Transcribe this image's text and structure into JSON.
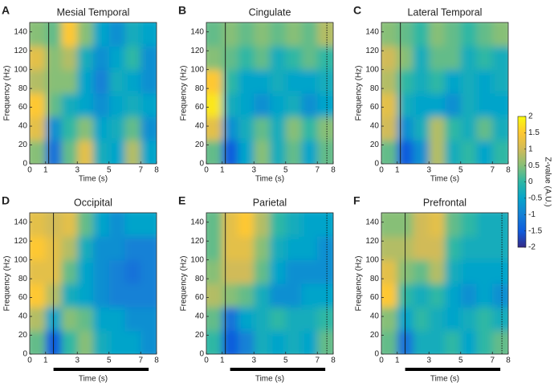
{
  "chart_data": [
    {
      "type": "heatmap",
      "label": "A",
      "title": "Mesial Temporal",
      "x_label": "Time (s)",
      "y_label": "Frequency (Hz)",
      "x_bins": [
        0,
        1,
        2,
        3,
        4,
        5,
        6,
        7,
        8
      ],
      "y_bins": [
        0,
        25,
        50,
        75,
        100,
        125,
        150
      ],
      "z": [
        [
          0.5,
          -1.2,
          0.3,
          1.2,
          -0.3,
          -0.5,
          0.8,
          -0.5
        ],
        [
          1.2,
          -0.8,
          0,
          0.5,
          -0.5,
          -0.3,
          0.3,
          -0.8
        ],
        [
          1.5,
          0.3,
          -0.3,
          -0.5,
          -0.8,
          -0.5,
          -0.3,
          -0.5
        ],
        [
          0.8,
          0.5,
          0.5,
          -0.5,
          -1,
          -0.3,
          -0.5,
          -0.8
        ],
        [
          1.2,
          0.5,
          0.8,
          -0.3,
          -0.8,
          -0.5,
          0,
          -0.8
        ],
        [
          0.5,
          0.3,
          1.5,
          0.5,
          -0.5,
          -0.8,
          -0.3,
          -0.5
        ]
      ],
      "xlim": [
        0,
        8
      ],
      "ylim": [
        0,
        150
      ],
      "xticks": [
        0,
        1,
        3,
        5,
        7,
        8
      ],
      "yticks": [
        0,
        20,
        40,
        60,
        80,
        100,
        120,
        140
      ],
      "event_lines": [
        1.2
      ]
    },
    {
      "type": "heatmap",
      "label": "B",
      "title": "Cingulate",
      "x_label": "Time (s)",
      "y_label": "Frequency (Hz)",
      "x_bins": [
        0,
        1,
        2,
        3,
        4,
        5,
        6,
        7,
        8
      ],
      "y_bins": [
        0,
        25,
        50,
        75,
        100,
        125,
        150
      ],
      "z": [
        [
          0.3,
          -1.5,
          -0.5,
          0.5,
          -0.3,
          0.3,
          -0.5,
          0.3
        ],
        [
          1.2,
          -0.8,
          -0.3,
          0.3,
          -0.3,
          0.5,
          0,
          0.5
        ],
        [
          1.8,
          -0.3,
          -0.5,
          -0.8,
          -0.5,
          -0.3,
          -0.8,
          -0.5
        ],
        [
          1.5,
          0,
          -0.5,
          -0.5,
          -0.3,
          -0.5,
          -0.5,
          -0.3
        ],
        [
          0.5,
          0.3,
          0,
          0.3,
          -0.3,
          0,
          0.3,
          0
        ],
        [
          0.3,
          0.5,
          0.3,
          0.5,
          0.3,
          0.5,
          0.3,
          0.8
        ]
      ],
      "xlim": [
        0,
        8
      ],
      "ylim": [
        0,
        150
      ],
      "xticks": [
        0,
        1,
        3,
        5,
        7,
        8
      ],
      "yticks": [
        0,
        20,
        40,
        60,
        80,
        100,
        120,
        140
      ],
      "event_lines": [
        1.2,
        7.6
      ]
    },
    {
      "type": "heatmap",
      "label": "C",
      "title": "Lateral Temporal",
      "x_label": "Time (s)",
      "y_label": "Frequency (Hz)",
      "x_bins": [
        0,
        1,
        2,
        3,
        4,
        5,
        6,
        7,
        8
      ],
      "y_bins": [
        0,
        25,
        50,
        75,
        100,
        125,
        150
      ],
      "z": [
        [
          0.3,
          -1.5,
          -0.8,
          0.8,
          -0.3,
          0,
          -0.5,
          0
        ],
        [
          1,
          -0.8,
          -0.3,
          0.8,
          0,
          -0.3,
          0.3,
          -0.3
        ],
        [
          1.2,
          -0.3,
          -0.5,
          -0.5,
          -0.8,
          -0.3,
          -0.5,
          -0.5
        ],
        [
          0.8,
          0,
          -0.3,
          0,
          -0.5,
          -0.3,
          -0.5,
          -0.3
        ],
        [
          1,
          0.5,
          -0.3,
          0.3,
          0.3,
          -0.3,
          0,
          -0.3
        ],
        [
          0.5,
          0.3,
          0,
          0.5,
          0.3,
          0,
          0.3,
          0.5
        ]
      ],
      "xlim": [
        0,
        8
      ],
      "ylim": [
        0,
        150
      ],
      "xticks": [
        0,
        1,
        3,
        5,
        7,
        8
      ],
      "yticks": [
        0,
        20,
        40,
        60,
        80,
        100,
        120,
        140
      ],
      "event_lines": [
        1.2
      ]
    },
    {
      "type": "heatmap",
      "label": "D",
      "title": "Occipital",
      "x_label": "Time (s)",
      "y_label": "Frequency (Hz)",
      "x_bins": [
        0,
        1,
        2,
        3,
        4,
        5,
        6,
        7,
        8
      ],
      "y_bins": [
        0,
        25,
        50,
        75,
        100,
        125,
        150
      ],
      "z": [
        [
          0.3,
          -1.5,
          0,
          0.5,
          -0.3,
          -0.5,
          -0.5,
          -0.8
        ],
        [
          0.8,
          -0.5,
          0.5,
          0.3,
          -0.5,
          -0.5,
          -0.8,
          -0.8
        ],
        [
          1.5,
          0.8,
          -0.3,
          -0.5,
          -0.8,
          -1,
          -1,
          -1
        ],
        [
          1.2,
          1.2,
          0.3,
          -0.5,
          -0.8,
          -1,
          -1.2,
          -1
        ],
        [
          1.5,
          1.2,
          0.8,
          -0.3,
          -0.8,
          -0.8,
          -1,
          -1
        ],
        [
          1.2,
          1,
          1.2,
          0.3,
          -0.5,
          -0.8,
          -0.5,
          -0.5
        ]
      ],
      "xlim": [
        0,
        8
      ],
      "ylim": [
        0,
        150
      ],
      "xticks": [
        0,
        1,
        3,
        5,
        7,
        8
      ],
      "yticks": [
        0,
        20,
        40,
        60,
        80,
        100,
        120,
        140
      ],
      "event_lines": [
        1.5
      ],
      "task_bar": [
        1.5,
        7.5
      ]
    },
    {
      "type": "heatmap",
      "label": "E",
      "title": "Parietal",
      "x_label": "Time (s)",
      "y_label": "Frequency (Hz)",
      "x_bins": [
        0,
        1,
        2,
        3,
        4,
        5,
        6,
        7,
        8
      ],
      "y_bins": [
        0,
        25,
        50,
        75,
        100,
        125,
        150
      ],
      "z": [
        [
          0,
          -1.5,
          -1,
          -0.3,
          -0.5,
          -0.3,
          -0.5,
          0.3
        ],
        [
          0.3,
          -1.2,
          -0.5,
          -0.3,
          0,
          -0.3,
          -0.3,
          0
        ],
        [
          0.8,
          0.5,
          0.3,
          -0.3,
          -0.8,
          -0.8,
          -0.5,
          -0.5
        ],
        [
          0.5,
          1,
          1,
          0.3,
          -0.5,
          -0.8,
          -0.8,
          -0.8
        ],
        [
          0.3,
          1.2,
          1.2,
          0.5,
          -0.3,
          -0.5,
          -0.5,
          -0.8
        ],
        [
          0.3,
          1.2,
          1.5,
          0.8,
          0,
          -0.3,
          -0.5,
          -0.5
        ]
      ],
      "xlim": [
        0,
        8
      ],
      "ylim": [
        0,
        150
      ],
      "xticks": [
        0,
        1,
        3,
        5,
        7,
        8
      ],
      "yticks": [
        0,
        20,
        40,
        60,
        80,
        100,
        120,
        140
      ],
      "event_lines": [
        1.2,
        7.6
      ],
      "task_bar": [
        1.5,
        7.5
      ]
    },
    {
      "type": "heatmap",
      "label": "F",
      "title": "Prefrontal",
      "x_label": "Time (s)",
      "y_label": "Frequency (Hz)",
      "x_bins": [
        0,
        1,
        2,
        3,
        4,
        5,
        6,
        7,
        8
      ],
      "y_bins": [
        0,
        25,
        50,
        75,
        100,
        125,
        150
      ],
      "z": [
        [
          0.3,
          -1.2,
          -0.3,
          -0.3,
          0,
          -0.5,
          0,
          0.3
        ],
        [
          0.5,
          -0.5,
          0,
          -0.3,
          -0.5,
          -0.3,
          0,
          -0.3
        ],
        [
          1.5,
          0,
          -0.3,
          0,
          -0.5,
          -0.8,
          -0.5,
          -0.8
        ],
        [
          1.2,
          0.5,
          0.3,
          0.8,
          -0.3,
          -0.5,
          -0.5,
          -0.5
        ],
        [
          0.8,
          0.8,
          1,
          1,
          0,
          -0.3,
          -0.3,
          -0.3
        ],
        [
          0.5,
          0.5,
          1,
          1.2,
          0.3,
          0,
          -0.3,
          -0.3
        ]
      ],
      "xlim": [
        0,
        8
      ],
      "ylim": [
        0,
        150
      ],
      "xticks": [
        0,
        1,
        3,
        5,
        7,
        8
      ],
      "yticks": [
        0,
        20,
        40,
        60,
        80,
        100,
        120,
        140
      ],
      "event_lines": [
        1.5,
        7.6
      ],
      "task_bar": [
        1.5,
        7.5
      ]
    }
  ],
  "colorbar": {
    "label": "Z-value (A.U.)",
    "lim": [
      -2,
      2
    ],
    "ticks": [
      2,
      1.5,
      1,
      0.5,
      0,
      -0.5,
      -1,
      -1.5,
      -2
    ],
    "colormap": [
      "#352a87",
      "#0f5cdd",
      "#1481d6",
      "#06a4ca",
      "#2eb7a4",
      "#87bf77",
      "#d1bb59",
      "#fec832",
      "#f9fb0e"
    ]
  }
}
